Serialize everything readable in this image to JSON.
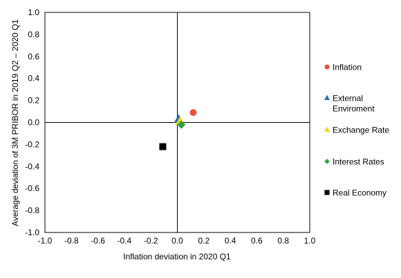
{
  "chart_data": {
    "type": "scatter",
    "title": "",
    "xlabel": "Inflation deviation in 2020 Q1",
    "ylabel": "Average deviation of 3M PRIBOR in  2019 Q2 – 2020 Q1",
    "xlim": [
      -1.0,
      1.0
    ],
    "ylim": [
      -1.0,
      1.0
    ],
    "xticks": [
      -1.0,
      -0.8,
      -0.6,
      -0.4,
      -0.2,
      0.0,
      0.2,
      0.4,
      0.6,
      0.8,
      1.0
    ],
    "yticks": [
      -1.0,
      -0.8,
      -0.6,
      -0.4,
      -0.2,
      0.0,
      0.2,
      0.4,
      0.6,
      0.8,
      1.0
    ],
    "xtick_labels": [
      "-1.0",
      "-0.8",
      "-0.6",
      "-0.4",
      "-0.2",
      "0.0",
      "0.2",
      "0.4",
      "0.6",
      "0.8",
      "1.0"
    ],
    "ytick_labels": [
      "-1.0",
      "-0.8",
      "-0.6",
      "-0.4",
      "-0.2",
      "0.0",
      "0.2",
      "0.4",
      "0.6",
      "0.8",
      "1.0"
    ],
    "grid": false,
    "legend_position": "right",
    "series": [
      {
        "name": "Inflation",
        "marker": "circle",
        "color": "#E8523F",
        "x": 0.12,
        "y": 0.09
      },
      {
        "name": "External Enviroment",
        "legend_lines": [
          "External",
          "Enviroment"
        ],
        "marker": "triangle",
        "color": "#1F6FB4",
        "x": 0.01,
        "y": 0.03
      },
      {
        "name": "Exchange Rate",
        "marker": "triangle",
        "color": "#FFD200",
        "x": 0.02,
        "y": 0.01
      },
      {
        "name": "Interest Rates",
        "marker": "diamond",
        "color": "#2EA043",
        "x": 0.03,
        "y": -0.02
      },
      {
        "name": "Real Economy",
        "marker": "square",
        "color": "#000000",
        "x": -0.11,
        "y": -0.22
      }
    ]
  }
}
